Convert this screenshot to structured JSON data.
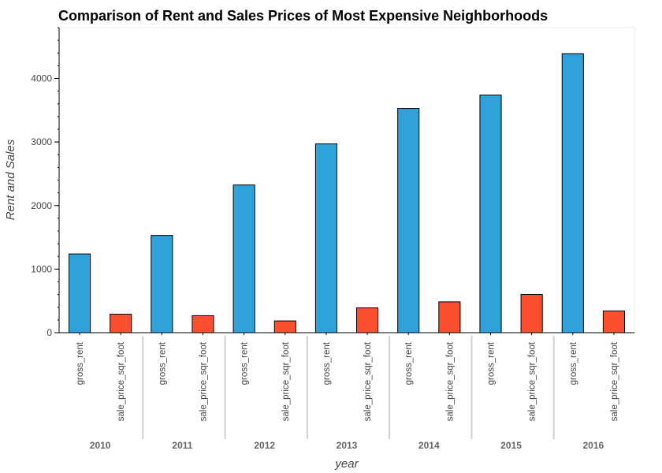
{
  "chart_data": {
    "type": "bar",
    "title": "Comparison of Rent and Sales Prices of Most Expensive Neighborhoods",
    "xlabel": "year",
    "ylabel": "Rent and Sales",
    "ylim": [
      0,
      4800
    ],
    "yticks": [
      "0",
      "1000",
      "2000",
      "3000",
      "4000"
    ],
    "groups": [
      "2010",
      "2011",
      "2012",
      "2013",
      "2014",
      "2015",
      "2016"
    ],
    "subcategories": [
      "gross_rent",
      "sale_price_sqr_foot"
    ],
    "series": [
      {
        "name": "gross_rent",
        "color": "#30a2da",
        "values": [
          1239,
          1530,
          2324,
          2971,
          3528,
          3739,
          4390
        ]
      },
      {
        "name": "sale_price_sqr_foot",
        "color": "#fc4f30",
        "values": [
          291,
          268,
          185,
          390,
          485,
          602,
          342
        ]
      }
    ],
    "grid": false,
    "legend": "none"
  }
}
